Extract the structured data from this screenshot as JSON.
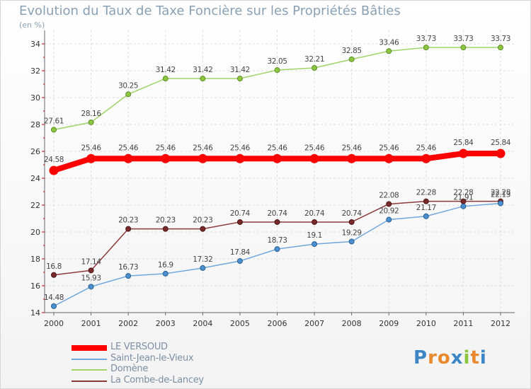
{
  "chart_data": {
    "type": "line",
    "title": "Evolution du Taux de Taxe Foncière sur les Propriétés Bâties",
    "ylabel": "(en %)",
    "xlabel": "",
    "ylim": [
      14,
      34
    ],
    "yticks": [
      14,
      16,
      18,
      20,
      22,
      24,
      26,
      28,
      30,
      32,
      34
    ],
    "x": [
      "2000",
      "2001",
      "2002",
      "2003",
      "2004",
      "2005",
      "2006",
      "2007",
      "2008",
      "2009",
      "2010",
      "2011",
      "2012"
    ],
    "grid": true,
    "legend_position": "bottom-left",
    "series": [
      {
        "name": "LE VERSOUD",
        "color": "#ff0000",
        "values": [
          24.58,
          25.46,
          25.46,
          25.46,
          25.46,
          25.46,
          25.46,
          25.46,
          25.46,
          25.46,
          25.46,
          25.84,
          25.84
        ],
        "labels": [
          "24.58",
          "25.46",
          "25.46",
          "25.46",
          "25.46",
          "25.46",
          "25.46",
          "25.46",
          "25.46",
          "25.46",
          "25.46",
          "25.84",
          "25.84"
        ]
      },
      {
        "name": "Saint-Jean-le-Vieux",
        "color": "#6fa8dc",
        "values": [
          14.48,
          15.93,
          16.73,
          16.9,
          17.32,
          17.84,
          18.73,
          19.1,
          19.29,
          20.92,
          21.17,
          21.91,
          22.13
        ],
        "labels": [
          "14.48",
          "15.93",
          "16.73",
          "16.9",
          "17.32",
          "17.84",
          "18.73",
          "19.1",
          "19.29",
          "20.92",
          "21.17",
          "21.91",
          "22.13"
        ]
      },
      {
        "name": "Domène",
        "color": "#9fd468",
        "values": [
          27.61,
          28.16,
          30.25,
          31.42,
          31.42,
          31.42,
          32.05,
          32.21,
          32.85,
          33.46,
          33.73,
          33.73,
          33.73
        ],
        "labels": [
          "27.61",
          "28.16",
          "30.25",
          "31.42",
          "31.42",
          "31.42",
          "32.05",
          "32.21",
          "32.85",
          "33.46",
          "33.73",
          "33.73",
          "33.73"
        ]
      },
      {
        "name": "La Combe-de-Lancey",
        "color": "#8b3a3a",
        "values": [
          16.8,
          17.14,
          20.23,
          20.23,
          20.23,
          20.74,
          20.74,
          20.74,
          20.74,
          22.08,
          22.28,
          22.28,
          22.28
        ],
        "labels": [
          "16.8",
          "17.14",
          "20.23",
          "20.23",
          "20.23",
          "20.74",
          "20.74",
          "20.74",
          "20.74",
          "22.08",
          "22.28",
          "22.28",
          "22.28"
        ]
      }
    ]
  },
  "logo": {
    "text": "Proxiti",
    "letters": [
      "P",
      "r",
      "o",
      "x",
      "i",
      "t",
      "i"
    ],
    "colors": [
      "#3d86c6",
      "#e8892e",
      "#e8892e",
      "#3d86c6",
      "#8cc63f",
      "#e8892e",
      "#3d86c6"
    ]
  }
}
